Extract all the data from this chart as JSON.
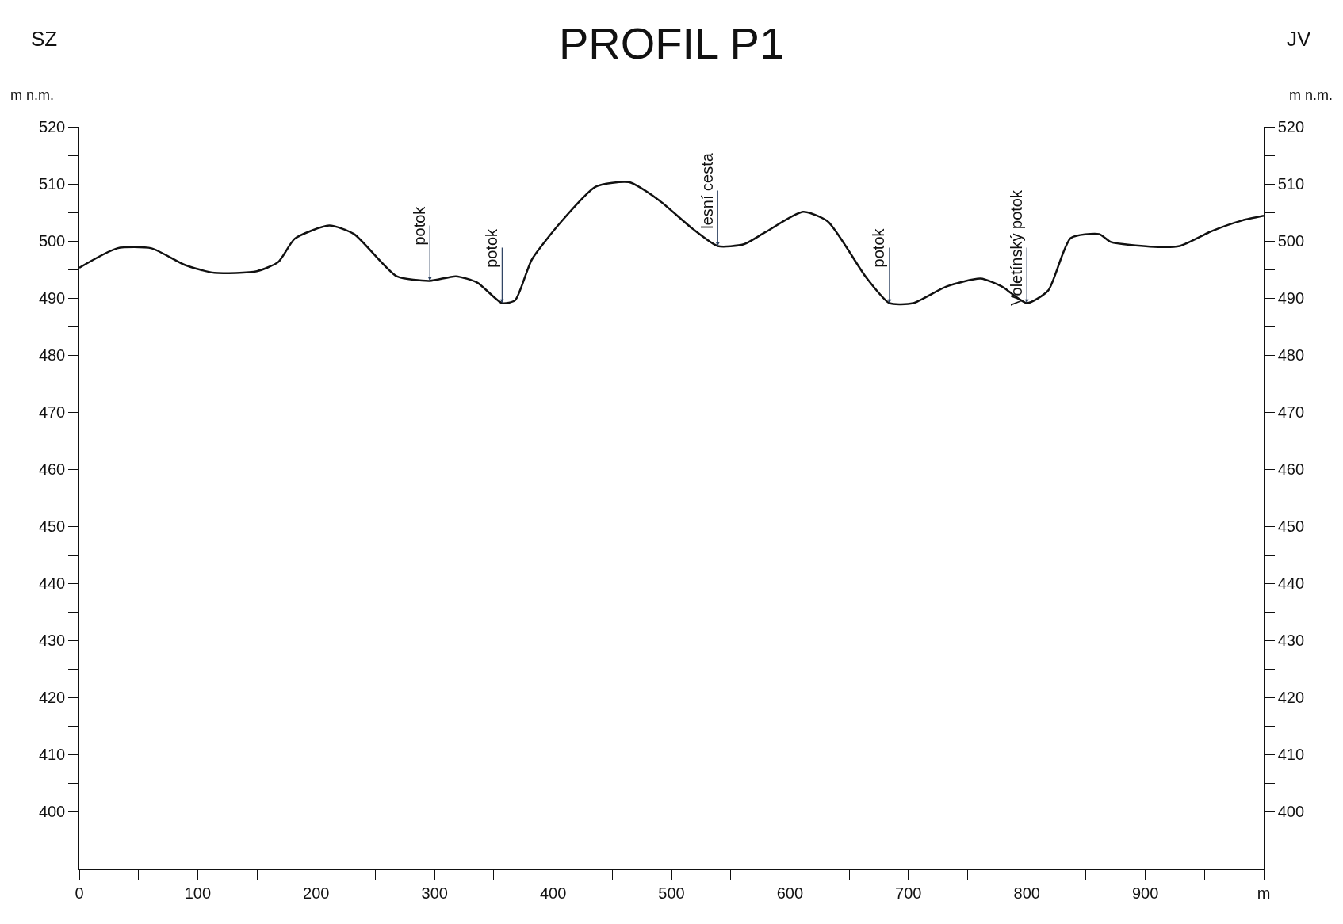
{
  "chart_data": {
    "type": "line",
    "title": "PROFIL P1",
    "ylabel": "m n.m.",
    "y2label": "m n.m.",
    "x": [
      0,
      32,
      61,
      89,
      114,
      150,
      168,
      182,
      211,
      232,
      268,
      296,
      318,
      336,
      357,
      368,
      382,
      407,
      436,
      464,
      489,
      518,
      539,
      561,
      579,
      611,
      632,
      664,
      684,
      704,
      732,
      761,
      779,
      800,
      818,
      837,
      861,
      871,
      904,
      929,
      957,
      982,
      1000
    ],
    "series": [
      {
        "color": "#111111",
        "values": [
          495.3,
          498.7,
          498.7,
          495.8,
          494.4,
          494.7,
          496.3,
          500.4,
          502.7,
          501.2,
          493.8,
          493,
          493.8,
          492.7,
          489.1,
          489.6,
          496.7,
          503.4,
          509.5,
          510.3,
          507.2,
          502.1,
          499.1,
          499.4,
          501.5,
          505.1,
          503.4,
          493.7,
          489.1,
          489.1,
          492,
          493.4,
          492,
          489.1,
          491.3,
          500.5,
          501.2,
          499.8,
          499,
          499.1,
          501.8,
          503.6,
          504.4
        ]
      }
    ],
    "annotations": [
      "SZ",
      "JV",
      {
        "text": "potok",
        "x": 296,
        "y": 493
      },
      {
        "text": "potok",
        "x": 357,
        "y": 489.1
      },
      {
        "text": "lesní cesta",
        "x": 539,
        "y": 499.1
      },
      {
        "text": "potok",
        "x": 684,
        "y": 489.1
      },
      {
        "text": "Voletínský potok",
        "x": 800,
        "y": 489.1
      }
    ],
    "xlim": [
      0,
      1000
    ],
    "ylim": [
      390,
      520
    ],
    "y2lim": [
      390,
      520
    ],
    "xticks": [
      0,
      {
        "value": 50,
        "label": null
      },
      100,
      {
        "value": 150,
        "label": null
      },
      200,
      {
        "value": 250,
        "label": null
      },
      300,
      {
        "value": 350,
        "label": null
      },
      400,
      {
        "value": 450,
        "label": null
      },
      500,
      {
        "value": 550,
        "label": null
      },
      600,
      {
        "value": 650,
        "label": null
      },
      700,
      {
        "value": 750,
        "label": null
      },
      800,
      {
        "value": 850,
        "label": null
      },
      900,
      {
        "value": 950,
        "label": null
      },
      {
        "value": 1000,
        "label": "m"
      }
    ],
    "yticks": [
      400,
      {
        "value": 405,
        "label": null
      },
      410,
      {
        "value": 415,
        "label": null
      },
      420,
      {
        "value": 425,
        "label": null
      },
      430,
      {
        "value": 435,
        "label": null
      },
      440,
      {
        "value": 445,
        "label": null
      },
      450,
      {
        "value": 455,
        "label": null
      },
      460,
      {
        "value": 465,
        "label": null
      },
      470,
      {
        "value": 475,
        "label": null
      },
      480,
      {
        "value": 485,
        "label": null
      },
      490,
      {
        "value": 495,
        "label": null
      },
      500,
      {
        "value": 505,
        "label": null
      },
      510,
      {
        "value": 515,
        "label": null
      },
      520
    ],
    "y2ticks": [
      400,
      {
        "value": 405,
        "label": null
      },
      410,
      {
        "value": 415,
        "label": null
      },
      420,
      {
        "value": 425,
        "label": null
      },
      430,
      {
        "value": 435,
        "label": null
      },
      440,
      {
        "value": 445,
        "label": null
      },
      450,
      {
        "value": 455,
        "label": null
      },
      460,
      {
        "value": 465,
        "label": null
      },
      470,
      {
        "value": 475,
        "label": null
      },
      480,
      {
        "value": 485,
        "label": null
      },
      490,
      {
        "value": 495,
        "label": null
      },
      500,
      {
        "value": 505,
        "label": null
      },
      510,
      {
        "value": 515,
        "label": null
      },
      520
    ],
    "legend": false,
    "marker": "none",
    "line_style": "solid"
  }
}
